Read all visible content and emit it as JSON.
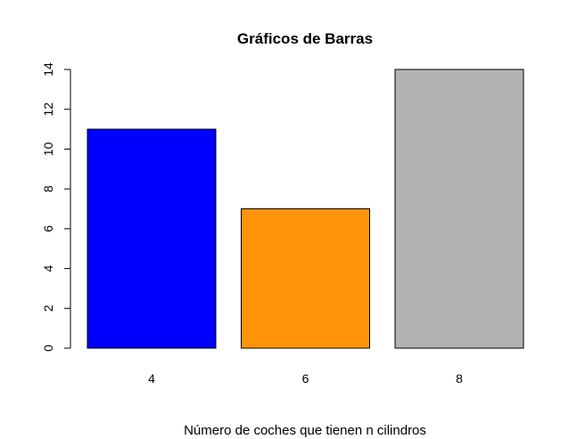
{
  "chart_data": {
    "type": "bar",
    "title": "Gráficos de Barras",
    "xlabel": "Número de coches que tienen n cilindros",
    "ylabel": "",
    "categories": [
      "4",
      "6",
      "8"
    ],
    "values": [
      11,
      7,
      14
    ],
    "colors": [
      "#0000ff",
      "#ff9408",
      "#b2b2b2"
    ],
    "ylim": [
      0,
      14
    ],
    "yticks": [
      0,
      2,
      4,
      6,
      8,
      10,
      12,
      14
    ],
    "grid": false,
    "legend": "none"
  }
}
